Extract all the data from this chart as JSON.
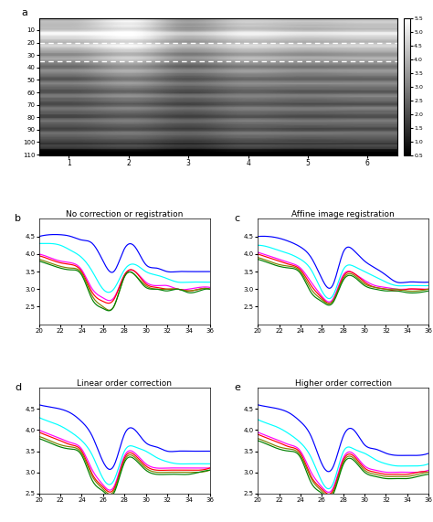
{
  "title_a": "a",
  "title_b": "b",
  "title_c": "c",
  "title_d": "d",
  "title_e": "e",
  "subplot_b_title": "No correction or registration",
  "subplot_c_title": "Affine image registration",
  "subplot_d_title": "Linear order correction",
  "subplot_e_title": "Higher order correction",
  "heatmap_xlabel_ticks": [
    1,
    2,
    3,
    4,
    5,
    6
  ],
  "heatmap_ylabel_ticks": [
    10,
    20,
    30,
    40,
    50,
    60,
    70,
    80,
    90,
    100,
    110
  ],
  "colorbar_ticks": [
    0.5,
    1.0,
    1.5,
    2.0,
    2.5,
    3.0,
    3.5,
    4.0,
    4.5,
    5.0,
    5.5
  ],
  "line_colors_b": [
    "blue",
    "cyan",
    "magenta",
    "red",
    "#808000",
    "green"
  ],
  "line_colors_cde": [
    "blue",
    "cyan",
    "magenta",
    "red",
    "#808000",
    "green"
  ],
  "x_vals": [
    20,
    21,
    22,
    23,
    24,
    25,
    26,
    27,
    28,
    29,
    30,
    31,
    32,
    33,
    34,
    35,
    36
  ],
  "x_ticks": [
    20,
    22,
    24,
    26,
    28,
    30,
    32,
    34,
    36
  ],
  "xlim": [
    20,
    36
  ],
  "ylim_b": [
    2,
    5
  ],
  "ylim_c": [
    2,
    5
  ],
  "ylim_d": [
    2.5,
    5
  ],
  "ylim_e": [
    2.5,
    5
  ],
  "yticks_b": [
    2.5,
    3.0,
    3.5,
    4.0,
    4.5
  ],
  "yticks_c": [
    2.5,
    3.0,
    3.5,
    4.0,
    4.5
  ],
  "yticks_d": [
    2.5,
    3.0,
    3.5,
    4.0,
    4.5
  ],
  "yticks_e": [
    2.5,
    3.0,
    3.5,
    4.0,
    4.5
  ],
  "lines_b": {
    "blue": [
      4.5,
      4.55,
      4.55,
      4.5,
      4.4,
      4.3,
      3.8,
      3.5,
      4.15,
      4.2,
      3.7,
      3.6,
      3.5,
      3.5,
      3.5,
      3.5,
      3.5
    ],
    "cyan": [
      4.3,
      4.3,
      4.25,
      4.1,
      3.9,
      3.5,
      3.0,
      3.0,
      3.55,
      3.7,
      3.5,
      3.4,
      3.3,
      3.2,
      3.2,
      3.2,
      3.2
    ],
    "magenta": [
      4.0,
      3.9,
      3.8,
      3.75,
      3.55,
      3.0,
      2.75,
      2.75,
      3.4,
      3.5,
      3.2,
      3.1,
      3.1,
      3.0,
      3.0,
      3.05,
      3.05
    ],
    "red": [
      3.95,
      3.85,
      3.75,
      3.7,
      3.5,
      2.9,
      2.65,
      2.7,
      3.4,
      3.5,
      3.15,
      3.05,
      3.0,
      3.0,
      2.95,
      3.0,
      3.0
    ],
    "olive": [
      3.85,
      3.75,
      3.65,
      3.6,
      3.45,
      2.8,
      2.5,
      2.5,
      3.35,
      3.4,
      3.1,
      3.0,
      3.0,
      3.0,
      2.95,
      3.0,
      3.0
    ],
    "green": [
      3.8,
      3.7,
      3.6,
      3.55,
      3.4,
      2.7,
      2.45,
      2.5,
      3.35,
      3.4,
      3.05,
      3.0,
      2.95,
      3.0,
      2.9,
      2.95,
      3.0
    ]
  },
  "lines_c": {
    "blue": [
      4.5,
      4.5,
      4.45,
      4.35,
      4.2,
      3.9,
      3.3,
      3.1,
      4.05,
      4.1,
      3.8,
      3.6,
      3.4,
      3.2,
      3.2,
      3.2,
      3.2
    ],
    "cyan": [
      4.25,
      4.2,
      4.1,
      4.0,
      3.85,
      3.55,
      2.95,
      2.8,
      3.55,
      3.65,
      3.5,
      3.35,
      3.2,
      3.1,
      3.1,
      3.1,
      3.1
    ],
    "magenta": [
      4.05,
      3.95,
      3.85,
      3.75,
      3.6,
      3.2,
      2.8,
      2.7,
      3.4,
      3.45,
      3.25,
      3.1,
      3.05,
      3.0,
      3.0,
      3.0,
      3.0
    ],
    "red": [
      4.0,
      3.9,
      3.8,
      3.7,
      3.55,
      3.1,
      2.75,
      2.65,
      3.35,
      3.45,
      3.2,
      3.05,
      3.0,
      2.95,
      3.0,
      3.0,
      3.0
    ],
    "olive": [
      3.9,
      3.8,
      3.7,
      3.65,
      3.5,
      3.0,
      2.7,
      2.65,
      3.3,
      3.4,
      3.15,
      3.05,
      3.0,
      3.0,
      2.95,
      2.95,
      3.0
    ],
    "green": [
      3.85,
      3.75,
      3.65,
      3.6,
      3.45,
      2.9,
      2.65,
      2.6,
      3.25,
      3.35,
      3.1,
      3.0,
      2.95,
      2.95,
      2.9,
      2.9,
      2.95
    ]
  },
  "lines_d": {
    "blue": [
      4.6,
      4.55,
      4.5,
      4.4,
      4.2,
      3.85,
      3.25,
      3.15,
      3.9,
      4.0,
      3.7,
      3.6,
      3.5,
      3.5,
      3.5,
      3.5,
      3.5
    ],
    "cyan": [
      4.3,
      4.2,
      4.1,
      3.95,
      3.75,
      3.4,
      2.85,
      2.8,
      3.5,
      3.6,
      3.5,
      3.35,
      3.25,
      3.2,
      3.2,
      3.2,
      3.2
    ],
    "magenta": [
      4.0,
      3.9,
      3.8,
      3.7,
      3.55,
      3.05,
      2.7,
      2.65,
      3.38,
      3.45,
      3.2,
      3.1,
      3.1,
      3.1,
      3.1,
      3.1,
      3.1
    ],
    "red": [
      3.95,
      3.85,
      3.75,
      3.65,
      3.5,
      2.95,
      2.65,
      2.6,
      3.33,
      3.4,
      3.15,
      3.05,
      3.05,
      3.05,
      3.05,
      3.05,
      3.1
    ],
    "olive": [
      3.85,
      3.75,
      3.65,
      3.6,
      3.45,
      2.9,
      2.6,
      2.55,
      3.28,
      3.35,
      3.1,
      3.0,
      3.0,
      3.0,
      3.0,
      3.0,
      3.05
    ],
    "green": [
      3.8,
      3.7,
      3.6,
      3.55,
      3.4,
      2.8,
      2.55,
      2.5,
      3.23,
      3.3,
      3.05,
      2.95,
      2.95,
      2.95,
      2.95,
      3.0,
      3.05
    ]
  },
  "lines_e": {
    "blue": [
      4.6,
      4.55,
      4.5,
      4.4,
      4.2,
      3.85,
      3.2,
      3.1,
      3.85,
      4.0,
      3.65,
      3.55,
      3.45,
      3.4,
      3.4,
      3.4,
      3.45
    ],
    "cyan": [
      4.25,
      4.15,
      4.05,
      3.9,
      3.7,
      3.35,
      2.78,
      2.7,
      3.48,
      3.55,
      3.45,
      3.3,
      3.2,
      3.15,
      3.15,
      3.15,
      3.2
    ],
    "magenta": [
      3.95,
      3.85,
      3.75,
      3.65,
      3.5,
      3.0,
      2.65,
      2.6,
      3.33,
      3.43,
      3.15,
      3.05,
      3.0,
      3.0,
      3.0,
      3.0,
      3.05
    ],
    "red": [
      3.9,
      3.8,
      3.7,
      3.6,
      3.45,
      2.9,
      2.6,
      2.55,
      3.28,
      3.38,
      3.1,
      3.0,
      2.95,
      2.95,
      2.95,
      3.0,
      3.0
    ],
    "olive": [
      3.8,
      3.7,
      3.6,
      3.55,
      3.4,
      2.85,
      2.55,
      2.5,
      3.23,
      3.33,
      3.05,
      2.95,
      2.9,
      2.9,
      2.9,
      2.95,
      3.0
    ],
    "green": [
      3.75,
      3.65,
      3.55,
      3.5,
      3.35,
      2.75,
      2.5,
      2.45,
      3.18,
      3.28,
      3.0,
      2.9,
      2.85,
      2.85,
      2.85,
      2.9,
      2.95
    ]
  },
  "heatmap_col_profiles": [
    [
      0.6,
      0.9,
      0.75,
      0.55,
      0.45,
      0.4,
      0.38,
      0.36,
      0.35,
      0.34,
      0.33
    ],
    [
      0.85,
      1.0,
      0.88,
      0.72,
      0.58,
      0.5,
      0.45,
      0.42,
      0.4,
      0.38,
      0.36
    ],
    [
      0.5,
      0.72,
      0.65,
      0.5,
      0.42,
      0.38,
      0.35,
      0.33,
      0.32,
      0.31,
      0.3
    ],
    [
      0.7,
      0.88,
      0.78,
      0.62,
      0.52,
      0.46,
      0.43,
      0.41,
      0.4,
      0.38,
      0.36
    ],
    [
      0.65,
      0.82,
      0.73,
      0.58,
      0.48,
      0.43,
      0.4,
      0.38,
      0.37,
      0.36,
      0.34
    ],
    [
      0.68,
      0.85,
      0.76,
      0.6,
      0.5,
      0.45,
      0.42,
      0.4,
      0.38,
      0.37,
      0.35
    ]
  ]
}
